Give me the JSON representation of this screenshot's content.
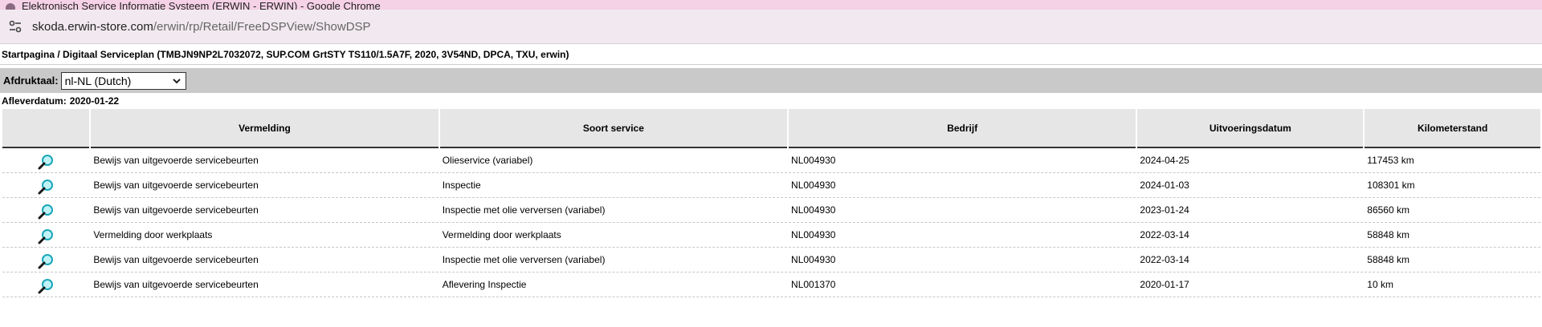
{
  "browser": {
    "window_title": "Elektronisch Service Informatie Systeem (ERWIN - ERWIN) - Google Chrome",
    "url_host": "skoda.erwin-store.com",
    "url_path": "/erwin/rp/Retail/FreeDSPView/ShowDSP"
  },
  "breadcrumb": "Startpagina / Digitaal Serviceplan (TMBJN9NP2L7032072, SUP.COM GrtSTY TS110/1.5A7F, 2020, 3V54ND, DPCA, TXU, erwin)",
  "language": {
    "label": "Afdruktaal:",
    "selected": "nl-NL (Dutch)"
  },
  "delivery": {
    "label": "Afleverdatum:",
    "value": "2020-01-22"
  },
  "table": {
    "headers": [
      "",
      "Vermelding",
      "Soort service",
      "Bedrijf",
      "Uitvoeringsdatum",
      "Kilometerstand"
    ],
    "rows": [
      {
        "vermelding": "Bewijs van uitgevoerde servicebeurten",
        "soort": "Olieservice (variabel)",
        "bedrijf": "NL004930",
        "datum": "2024-04-25",
        "km": "117453 km"
      },
      {
        "vermelding": "Bewijs van uitgevoerde servicebeurten",
        "soort": "Inspectie",
        "bedrijf": "NL004930",
        "datum": "2024-01-03",
        "km": "108301 km"
      },
      {
        "vermelding": "Bewijs van uitgevoerde servicebeurten",
        "soort": "Inspectie met olie verversen (variabel)",
        "bedrijf": "NL004930",
        "datum": "2023-01-24",
        "km": "86560 km"
      },
      {
        "vermelding": "Vermelding door werkplaats",
        "soort": "Vermelding door werkplaats",
        "bedrijf": "NL004930",
        "datum": "2022-03-14",
        "km": "58848 km"
      },
      {
        "vermelding": "Bewijs van uitgevoerde servicebeurten",
        "soort": "Inspectie met olie verversen (variabel)",
        "bedrijf": "NL004930",
        "datum": "2022-03-14",
        "km": "58848 km"
      },
      {
        "vermelding": "Bewijs van uitgevoerde servicebeurten",
        "soort": "Aflevering Inspectie",
        "bedrijf": "NL001370",
        "datum": "2020-01-17",
        "km": "10 km"
      }
    ]
  },
  "icons": {
    "site": "tune-icon",
    "row_action": "magnifier-icon",
    "select_arrow": "chevron-down-icon"
  },
  "colors": {
    "titlebar": "#f6d2e6",
    "addressbar": "#f1e9ef",
    "language_bar": "#c9c9c9",
    "header_bg": "#e6e6e6",
    "magnifier": "#1aa6b8"
  }
}
